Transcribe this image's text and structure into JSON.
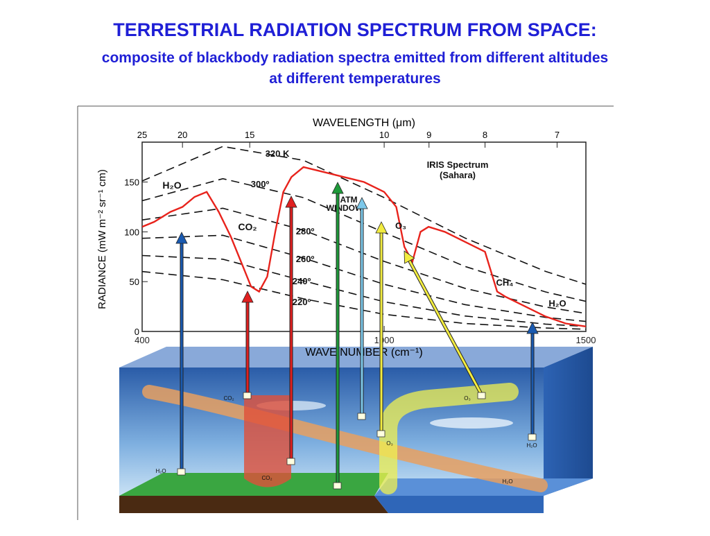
{
  "chart_data": {
    "type": "line",
    "title": "TERRESTRIAL RADIATION SPECTRUM FROM SPACE:",
    "subtitle": [
      "composite of blackbody radiation spectra emitted from different altitudes",
      "at different temperatures"
    ],
    "x_label": "WAVE NUMBER (cm⁻¹)",
    "x2_label": "WAVELENGTH (μm)",
    "y_label": "RADIANCE (mW m⁻² sr⁻¹ cm)",
    "xlim": [
      400,
      1500
    ],
    "ylim": [
      0,
      190
    ],
    "xticks": [
      400,
      1000,
      1500
    ],
    "x2ticks": [
      {
        "value": 400,
        "label": "25"
      },
      {
        "value": 500,
        "label": "20"
      },
      {
        "value": 666.7,
        "label": "15"
      },
      {
        "value": 1000,
        "label": "10"
      },
      {
        "value": 1111.1,
        "label": "9"
      },
      {
        "value": 1250,
        "label": "8"
      },
      {
        "value": 1428.6,
        "label": "7"
      }
    ],
    "yticks": [
      0,
      50,
      100,
      150
    ],
    "series": [
      {
        "name": "IRIS Spectrum (Sahara)",
        "color": "#e8231c",
        "dashed": false,
        "x": [
          400,
          430,
          470,
          500,
          530,
          560,
          590,
          620,
          650,
          670,
          690,
          710,
          730,
          750,
          770,
          800,
          850,
          900,
          950,
          1000,
          1030,
          1050,
          1070,
          1090,
          1110,
          1150,
          1200,
          1250,
          1280,
          1300,
          1350,
          1400,
          1450,
          1500
        ],
        "values": [
          105,
          110,
          120,
          125,
          135,
          140,
          120,
          95,
          65,
          45,
          40,
          55,
          100,
          140,
          155,
          165,
          160,
          155,
          150,
          140,
          125,
          85,
          70,
          100,
          105,
          100,
          90,
          80,
          40,
          35,
          25,
          15,
          8,
          5
        ]
      },
      {
        "name": "320 K",
        "color": "#111111",
        "dashed": true,
        "x": [
          400,
          600,
          800,
          1000,
          1200,
          1400,
          1500
        ],
        "values": [
          151,
          185.7,
          171.8,
          134.3,
          93.8,
          60.3,
          47.3
        ]
      },
      {
        "name": "300º",
        "color": "#111111",
        "dashed": true,
        "x": [
          400,
          600,
          800,
          1000,
          1200,
          1400,
          1500
        ],
        "values": [
          131.2,
          153.3,
          134.3,
          99.3,
          65.3,
          39.7,
          30.2
        ]
      },
      {
        "name": "280º",
        "color": "#111111",
        "dashed": true,
        "x": [
          400,
          600,
          800,
          1000,
          1200,
          1400,
          1500
        ],
        "values": [
          111.9,
          123.7,
          101.6,
          70.3,
          43.3,
          24.6,
          18.1
        ]
      },
      {
        "name": "260º",
        "color": "#111111",
        "dashed": true,
        "x": [
          400,
          600,
          800,
          1000,
          1200,
          1400,
          1500
        ],
        "values": [
          93.5,
          96.5,
          73.7,
          47.3,
          26.9,
          14.1,
          10.0
        ]
      },
      {
        "name": "240º",
        "color": "#111111",
        "dashed": true,
        "x": [
          400,
          600,
          800,
          1000,
          1200,
          1400,
          1500
        ],
        "values": [
          76.2,
          72.5,
          50.8,
          29.8,
          15.5,
          7.4,
          5.0
        ]
      },
      {
        "name": "220º",
        "color": "#111111",
        "dashed": true,
        "x": [
          400,
          600,
          800,
          1000,
          1200,
          1400,
          1500
        ],
        "values": [
          60.1,
          51.9,
          32.8,
          17.2,
          8.0,
          3.4,
          2.2
        ]
      }
    ],
    "annotations": [
      "H₂O",
      "CO₂",
      "ATM",
      "WINDOW",
      "O₃",
      "CH₄",
      "H₂O",
      "IRIS Spectrum",
      "(Sahara)"
    ]
  },
  "diagram": {
    "labels": [
      "CO₂",
      "CO₂",
      "O₃",
      "O₃",
      "H₂O",
      "H₂O",
      "H₂O"
    ]
  }
}
